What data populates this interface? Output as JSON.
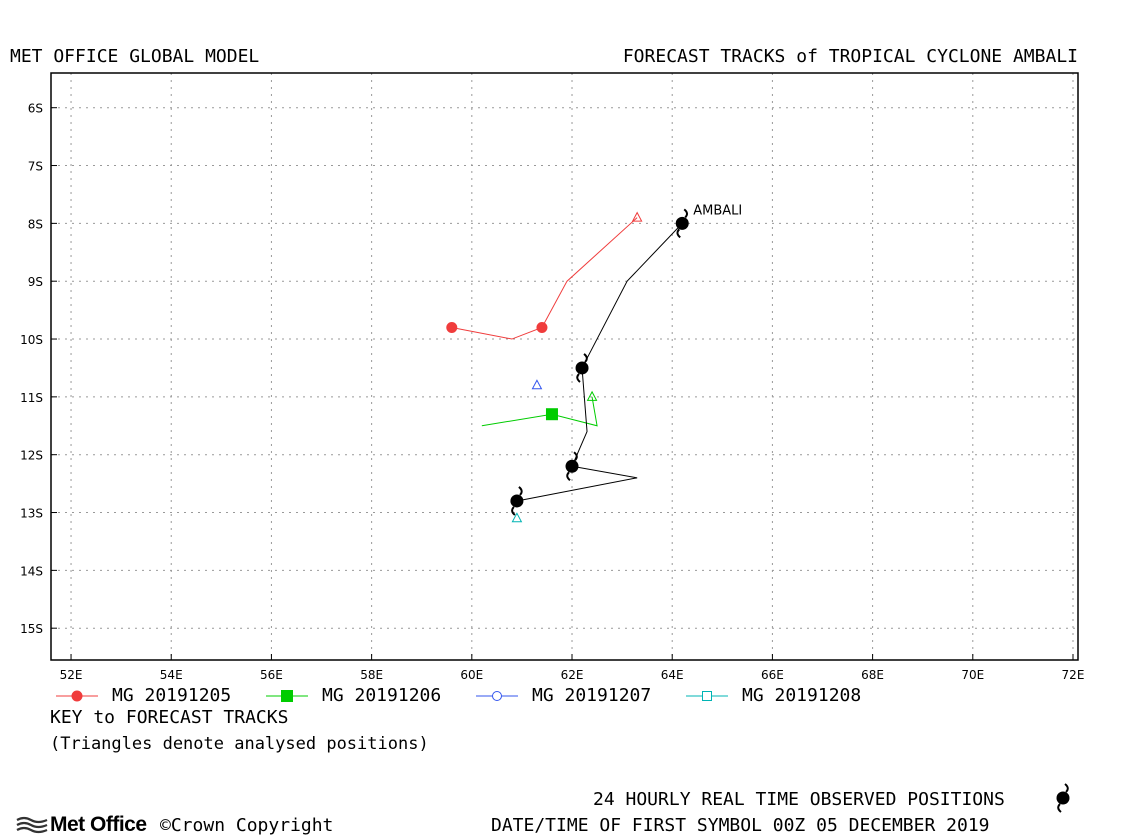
{
  "header": {
    "left_title": "MET OFFICE GLOBAL MODEL",
    "right_title": "FORECAST TRACKS of TROPICAL CYCLONE AMBALI"
  },
  "chart_data": {
    "type": "map",
    "xlim": [
      51.6,
      72.1
    ],
    "ylim": [
      -15.55,
      -5.4
    ],
    "x_ticks": [
      52,
      54,
      56,
      58,
      60,
      62,
      64,
      66,
      68,
      70,
      72
    ],
    "x_tick_labels": [
      "52E",
      "54E",
      "56E",
      "58E",
      "60E",
      "62E",
      "64E",
      "66E",
      "68E",
      "70E",
      "72E"
    ],
    "y_ticks": [
      -6,
      -7,
      -8,
      -9,
      -10,
      -11,
      -12,
      -13,
      -14,
      -15
    ],
    "y_tick_labels": [
      "6S",
      "7S",
      "8S",
      "9S",
      "10S",
      "11S",
      "12S",
      "13S",
      "14S",
      "15S"
    ],
    "grid": true,
    "storm_label": "AMBALI",
    "observed_track": [
      {
        "lon": 64.2,
        "lat": -8.0,
        "symbol": true
      },
      {
        "lon": 63.1,
        "lat": -9.0,
        "symbol": false
      },
      {
        "lon": 62.2,
        "lat": -10.5,
        "symbol": true
      },
      {
        "lon": 62.3,
        "lat": -11.6,
        "symbol": false
      },
      {
        "lon": 62.0,
        "lat": -12.2,
        "symbol": true
      },
      {
        "lon": 63.3,
        "lat": -12.4,
        "symbol": false
      },
      {
        "lon": 60.9,
        "lat": -12.8,
        "symbol": true
      }
    ],
    "series": [
      {
        "name": "MG 20191205",
        "color": "#f03c3c",
        "marker": "filled-circle",
        "analysed": {
          "lon": 63.3,
          "lat": -7.9
        },
        "track": [
          {
            "lon": 63.3,
            "lat": -7.9,
            "marker": false
          },
          {
            "lon": 61.9,
            "lat": -9.0,
            "marker": false
          },
          {
            "lon": 61.4,
            "lat": -9.8,
            "marker": true
          },
          {
            "lon": 60.8,
            "lat": -10.0,
            "marker": false
          },
          {
            "lon": 59.6,
            "lat": -9.8,
            "marker": true
          }
        ]
      },
      {
        "name": "MG 20191206",
        "color": "#00cc00",
        "marker": "filled-square",
        "analysed": {
          "lon": 62.4,
          "lat": -11.0
        },
        "track": [
          {
            "lon": 62.4,
            "lat": -11.0,
            "marker": false
          },
          {
            "lon": 62.5,
            "lat": -11.5,
            "marker": false
          },
          {
            "lon": 61.6,
            "lat": -11.3,
            "marker": true
          },
          {
            "lon": 60.2,
            "lat": -11.5,
            "marker": false
          }
        ]
      },
      {
        "name": "MG 20191207",
        "color": "#3355ee",
        "marker": "open-circle",
        "analysed": {
          "lon": 61.3,
          "lat": -10.8
        },
        "track": []
      },
      {
        "name": "MG 20191208",
        "color": "#00b4b4",
        "marker": "open-square",
        "analysed": {
          "lon": 60.9,
          "lat": -13.1
        },
        "track": []
      }
    ]
  },
  "key": {
    "title": "KEY to FORECAST TRACKS",
    "note": "(Triangles denote analysed positions)"
  },
  "footer": {
    "observed_label": "24 HOURLY REAL TIME OBSERVED POSITIONS",
    "datetime_label": "DATE/TIME OF FIRST SYMBOL 00Z 05 DECEMBER 2019",
    "brand": "Met Office",
    "copyright_symbol": "©",
    "copyright": "Crown Copyright"
  }
}
